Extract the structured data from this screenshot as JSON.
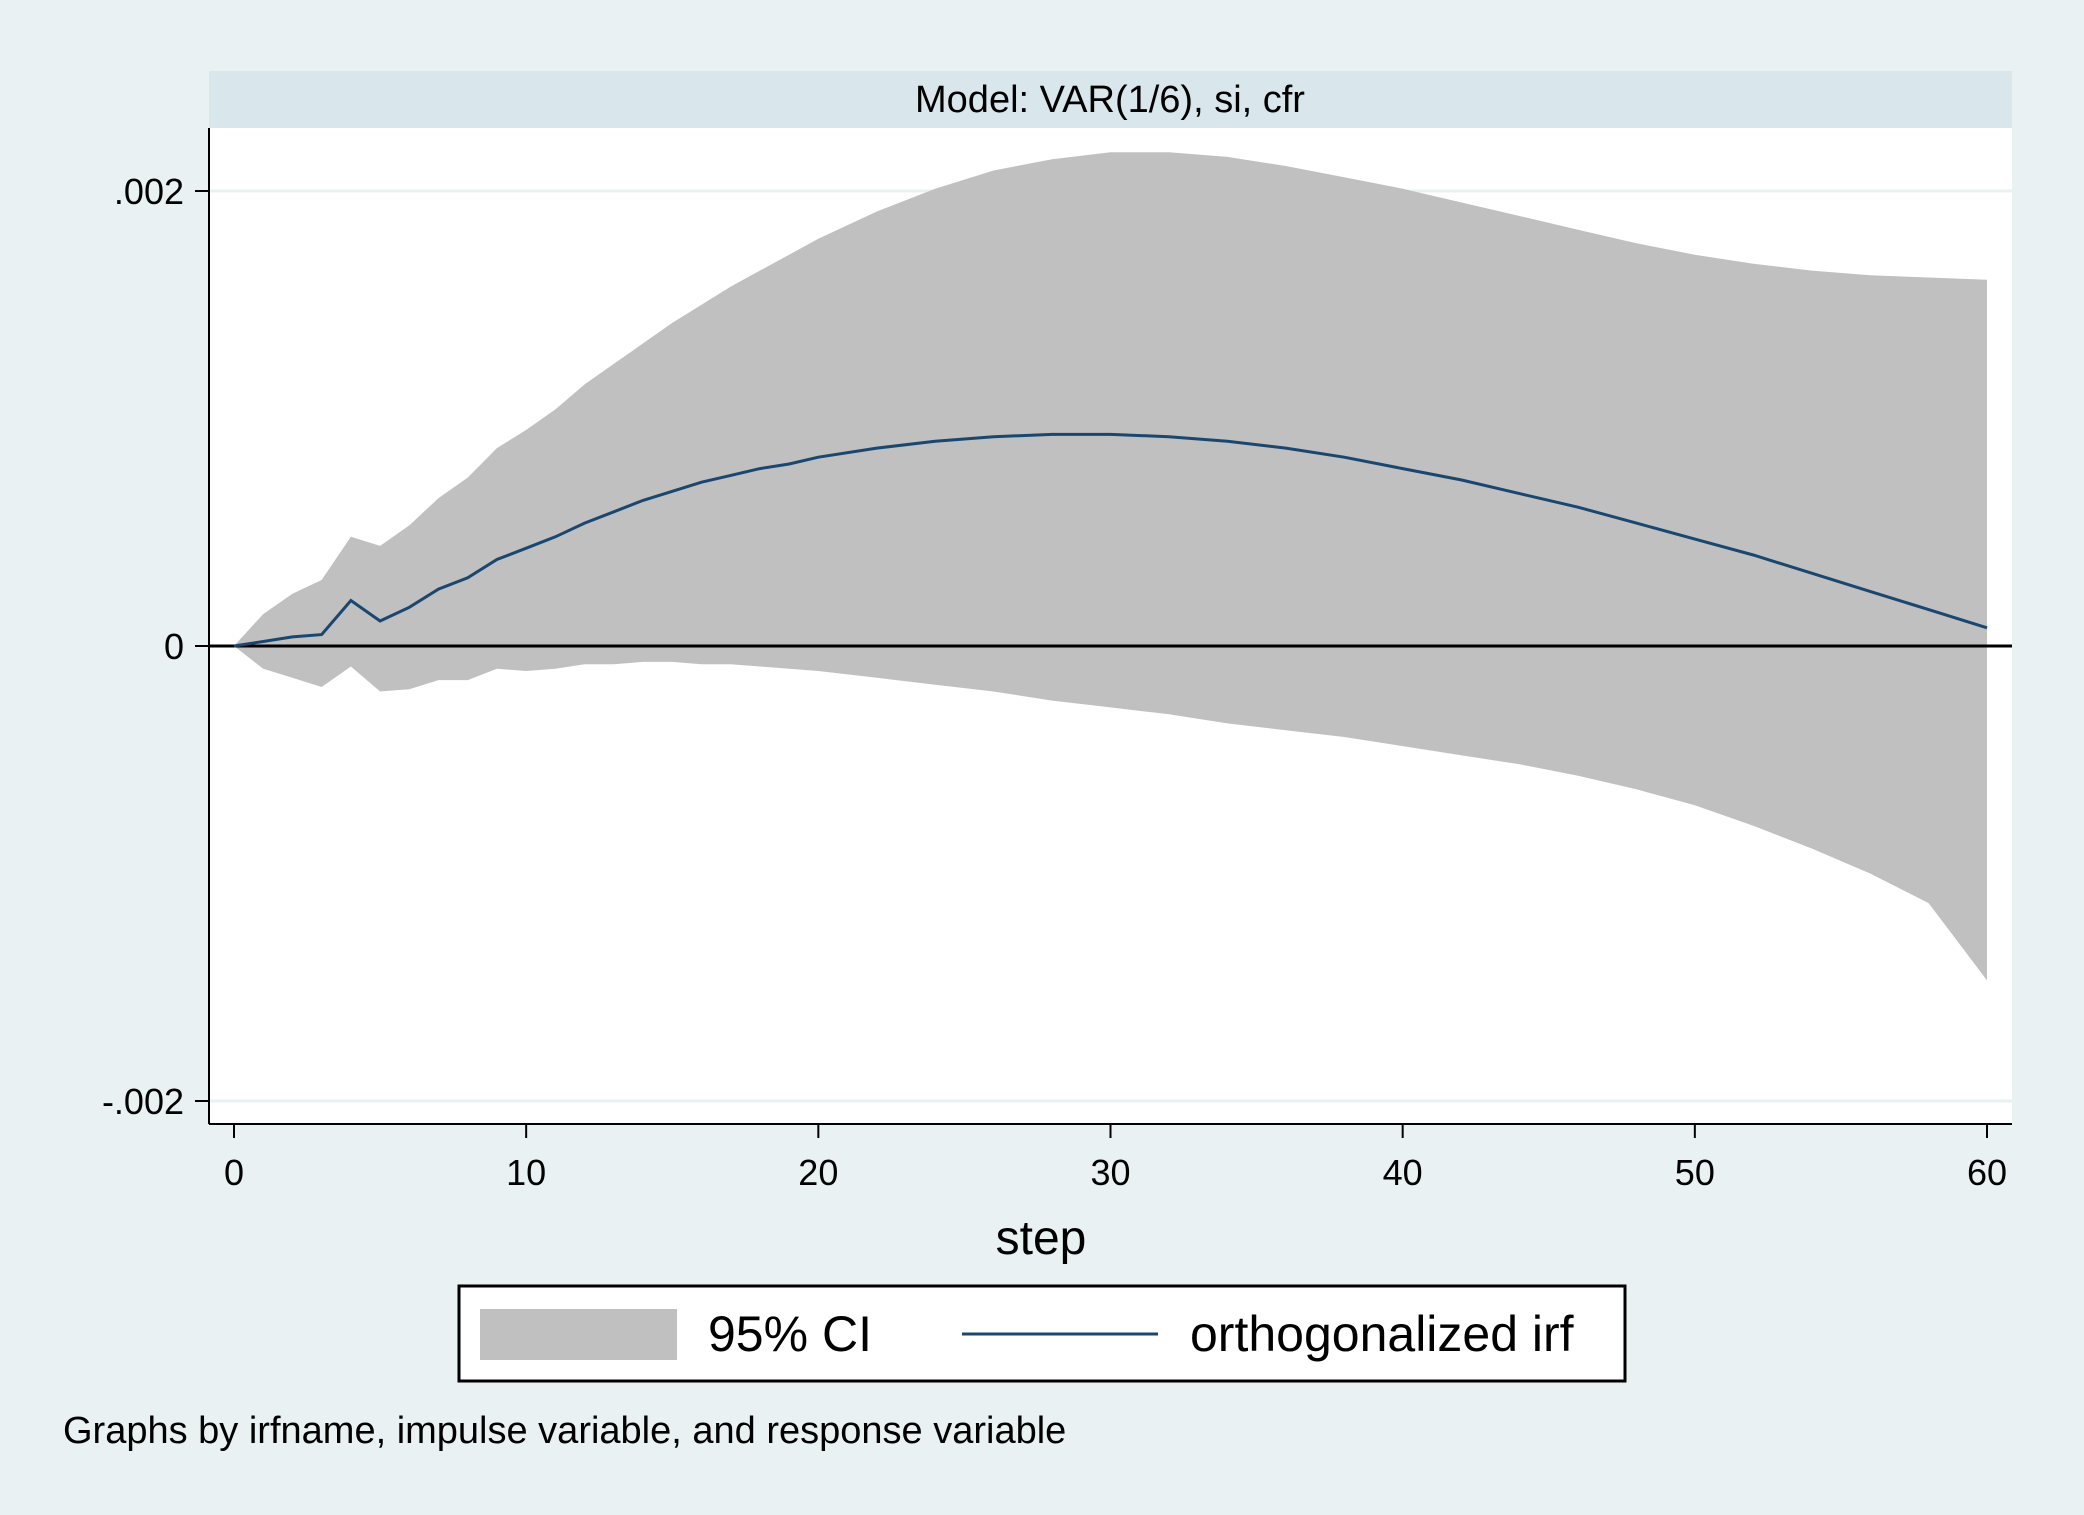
{
  "chart_data": {
    "type": "area",
    "panel_title": "Model: VAR(1/6), si, cfr",
    "xlabel": "step",
    "ylabel": "",
    "xlim": [
      0,
      60
    ],
    "ylim": [
      -0.002,
      0.002
    ],
    "x_ticks": [
      {
        "value": 0,
        "label": "0"
      },
      {
        "value": 10,
        "label": "10"
      },
      {
        "value": 20,
        "label": "20"
      },
      {
        "value": 30,
        "label": "30"
      },
      {
        "value": 40,
        "label": "40"
      },
      {
        "value": 50,
        "label": "50"
      },
      {
        "value": 60,
        "label": "60"
      }
    ],
    "y_ticks": [
      {
        "value": -0.002,
        "label": "-.002"
      },
      {
        "value": 0,
        "label": "0"
      },
      {
        "value": 0.002,
        "label": ".002"
      }
    ],
    "grid": true,
    "zero_line": true,
    "legend_position": "bottom",
    "series": [
      {
        "name": "95% CI",
        "kind": "band",
        "color": "#c0c0c0",
        "x": [
          0,
          1,
          2,
          3,
          4,
          5,
          6,
          7,
          8,
          9,
          10,
          11,
          12,
          13,
          14,
          15,
          16,
          17,
          18,
          19,
          20,
          22,
          24,
          26,
          28,
          30,
          32,
          34,
          36,
          38,
          40,
          42,
          44,
          46,
          48,
          50,
          52,
          54,
          56,
          58,
          60
        ],
        "lower": [
          0,
          -0.0001,
          -0.00014,
          -0.00018,
          -9e-05,
          -0.0002,
          -0.00019,
          -0.00015,
          -0.00015,
          -0.0001,
          -0.00011,
          -0.0001,
          -8e-05,
          -8e-05,
          -7e-05,
          -7e-05,
          -8e-05,
          -8e-05,
          -9e-05,
          -0.0001,
          -0.00011,
          -0.00014,
          -0.00017,
          -0.0002,
          -0.00024,
          -0.00027,
          -0.0003,
          -0.00034,
          -0.00037,
          -0.0004,
          -0.00044,
          -0.00048,
          -0.00052,
          -0.00057,
          -0.00063,
          -0.0007,
          -0.00079,
          -0.00089,
          -0.001,
          -0.00113,
          -0.00147
        ],
        "upper": [
          0,
          0.00014,
          0.00023,
          0.00029,
          0.00048,
          0.00044,
          0.00053,
          0.00065,
          0.00074,
          0.00087,
          0.00095,
          0.00104,
          0.00115,
          0.00124,
          0.00133,
          0.00142,
          0.0015,
          0.00158,
          0.00165,
          0.00172,
          0.00179,
          0.00191,
          0.00201,
          0.00209,
          0.00214,
          0.00217,
          0.00217,
          0.00215,
          0.00211,
          0.00206,
          0.00201,
          0.00195,
          0.00189,
          0.00183,
          0.00177,
          0.00172,
          0.00168,
          0.00165,
          0.00163,
          0.00162,
          0.00161
        ]
      },
      {
        "name": "orthogonalized irf",
        "kind": "line",
        "color": "#1a476f",
        "x": [
          0,
          1,
          2,
          3,
          4,
          5,
          6,
          7,
          8,
          9,
          10,
          11,
          12,
          13,
          14,
          15,
          16,
          17,
          18,
          19,
          20,
          22,
          24,
          26,
          28,
          30,
          32,
          34,
          36,
          38,
          40,
          42,
          44,
          46,
          48,
          50,
          52,
          54,
          56,
          58,
          60
        ],
        "values": [
          0,
          2e-05,
          4e-05,
          5e-05,
          0.0002,
          0.00011,
          0.00017,
          0.00025,
          0.0003,
          0.00038,
          0.00043,
          0.00048,
          0.00054,
          0.00059,
          0.00064,
          0.00068,
          0.00072,
          0.00075,
          0.00078,
          0.0008,
          0.00083,
          0.00087,
          0.0009,
          0.00092,
          0.00093,
          0.00093,
          0.00092,
          0.0009,
          0.00087,
          0.00083,
          0.00078,
          0.00073,
          0.00067,
          0.00061,
          0.00054,
          0.00047,
          0.0004,
          0.00032,
          0.00024,
          0.00016,
          8e-05
        ]
      }
    ],
    "note": "Graphs by irfname, impulse variable, and response variable"
  }
}
